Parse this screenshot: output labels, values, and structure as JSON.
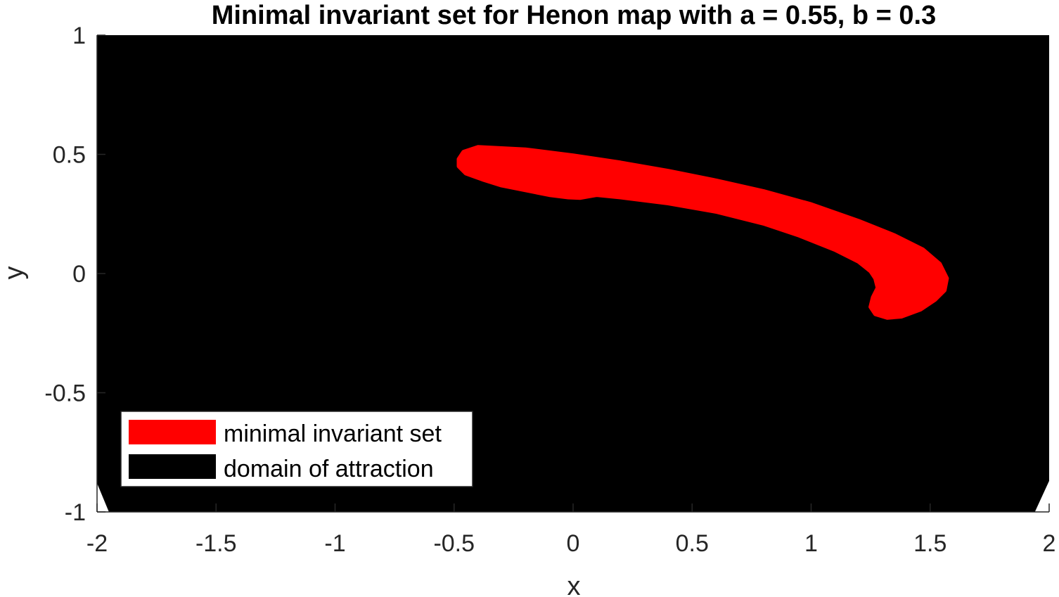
{
  "chart_data": {
    "type": "area",
    "title": "Minimal invariant set for Henon map with a = 0.55, b = 0.3",
    "xlabel": "x",
    "ylabel": "y",
    "xlim": [
      -2,
      2
    ],
    "ylim": [
      -1,
      1
    ],
    "x_ticks": [
      -2,
      -1.5,
      -1,
      -0.5,
      0,
      0.5,
      1,
      1.5,
      2
    ],
    "x_tick_labels": [
      "-2",
      "-1.5",
      "-1",
      "-0.5",
      "0",
      "0.5",
      "1",
      "1.5",
      "2"
    ],
    "y_ticks": [
      -1,
      -0.5,
      0,
      0.5,
      1
    ],
    "y_tick_labels": [
      "-1",
      "-0.5",
      "0",
      "0.5",
      "1"
    ],
    "grid": false,
    "legend_position": "bottom-left",
    "series": [
      {
        "name": "minimal invariant set",
        "color": "#ff0000",
        "outline": [
          [
            -0.48,
            0.48
          ],
          [
            -0.46,
            0.51
          ],
          [
            -0.4,
            0.53
          ],
          [
            -0.2,
            0.52
          ],
          [
            0,
            0.495
          ],
          [
            0.2,
            0.465
          ],
          [
            0.4,
            0.43
          ],
          [
            0.6,
            0.39
          ],
          [
            0.8,
            0.345
          ],
          [
            1.0,
            0.29
          ],
          [
            1.2,
            0.22
          ],
          [
            1.35,
            0.16
          ],
          [
            1.47,
            0.1
          ],
          [
            1.54,
            0.04
          ],
          [
            1.57,
            -0.02
          ],
          [
            1.56,
            -0.07
          ],
          [
            1.52,
            -0.11
          ],
          [
            1.46,
            -0.15
          ],
          [
            1.38,
            -0.18
          ],
          [
            1.32,
            -0.185
          ],
          [
            1.27,
            -0.17
          ],
          [
            1.25,
            -0.14
          ],
          [
            1.26,
            -0.1
          ],
          [
            1.28,
            -0.06
          ],
          [
            1.27,
            -0.02
          ],
          [
            1.25,
            0.01
          ],
          [
            1.2,
            0.05
          ],
          [
            1.1,
            0.1
          ],
          [
            0.95,
            0.16
          ],
          [
            0.8,
            0.21
          ],
          [
            0.6,
            0.26
          ],
          [
            0.4,
            0.295
          ],
          [
            0.2,
            0.32
          ],
          [
            0.1,
            0.33
          ],
          [
            0.07,
            0.325
          ],
          [
            0.03,
            0.318
          ],
          [
            -0.02,
            0.32
          ],
          [
            -0.1,
            0.33
          ],
          [
            -0.2,
            0.35
          ],
          [
            -0.3,
            0.37
          ],
          [
            -0.38,
            0.395
          ],
          [
            -0.45,
            0.42
          ],
          [
            -0.48,
            0.45
          ]
        ]
      },
      {
        "name": "domain of attraction",
        "color": "#000000",
        "outline": [
          [
            -2,
            1
          ],
          [
            2,
            1
          ],
          [
            2,
            -0.87
          ],
          [
            1.94,
            -1
          ],
          [
            -1.95,
            -1
          ],
          [
            -2,
            -0.88
          ]
        ]
      }
    ]
  },
  "legend": {
    "items": [
      {
        "label": "minimal invariant set",
        "color": "#ff0000"
      },
      {
        "label": "domain of attraction",
        "color": "#000000"
      }
    ]
  }
}
